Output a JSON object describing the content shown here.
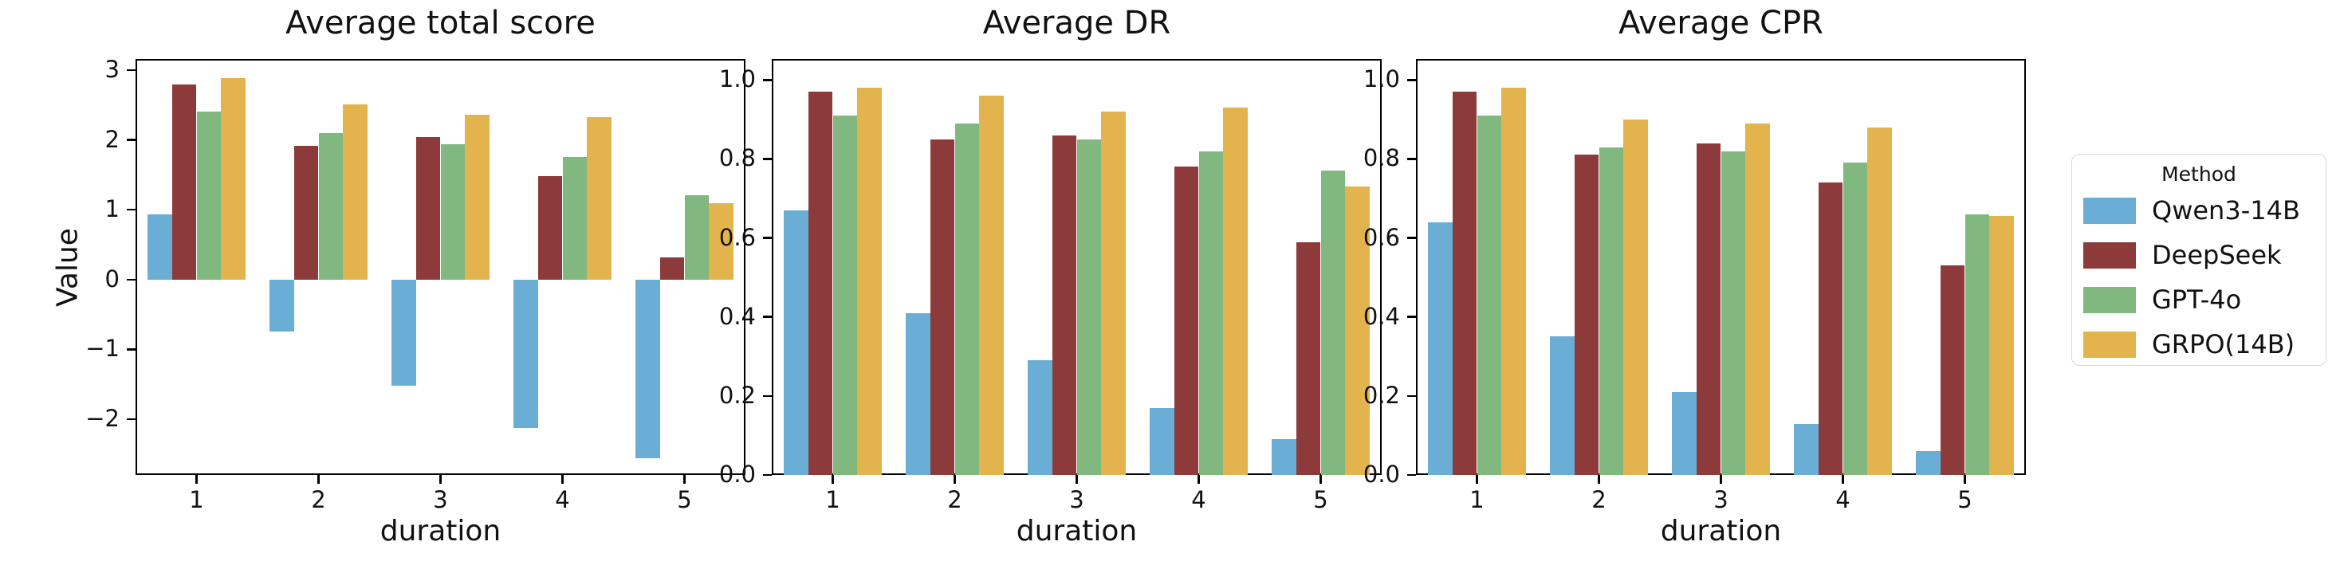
{
  "figure": {
    "background": "#ffffff"
  },
  "legend": {
    "title": "Method",
    "items": [
      {
        "label": "Qwen3-14B",
        "color": "#6aaed6"
      },
      {
        "label": "DeepSeek",
        "color": "#8c3a3a"
      },
      {
        "label": "GPT-4o",
        "color": "#80b880"
      },
      {
        "label": "GRPO(14B)",
        "color": "#e3b44d"
      }
    ]
  },
  "chart_data": [
    {
      "type": "bar",
      "title": "Average total score",
      "xlabel": "duration",
      "ylabel": "Value",
      "categories": [
        "1",
        "2",
        "3",
        "4",
        "5"
      ],
      "series": [
        {
          "name": "Qwen3-14B",
          "color": "#6aaed6",
          "values": [
            0.93,
            -0.74,
            -1.52,
            -2.13,
            -2.56
          ]
        },
        {
          "name": "DeepSeek",
          "color": "#8c3a3a",
          "values": [
            2.8,
            1.92,
            2.04,
            1.48,
            0.32
          ]
        },
        {
          "name": "GPT-4o",
          "color": "#80b880",
          "values": [
            2.41,
            2.1,
            1.94,
            1.76,
            1.21
          ]
        },
        {
          "name": "GRPO(14B)",
          "color": "#e3b44d",
          "values": [
            2.89,
            2.51,
            2.36,
            2.33,
            1.09
          ]
        }
      ],
      "ylim": [
        -2.8,
        3.16
      ],
      "yticks": [
        3,
        2,
        1,
        0,
        -1,
        -2
      ],
      "ytick_decimals": 0,
      "grid": false,
      "legend_position": "outside-right"
    },
    {
      "type": "bar",
      "title": "Average DR",
      "xlabel": "duration",
      "ylabel": "",
      "categories": [
        "1",
        "2",
        "3",
        "4",
        "5"
      ],
      "series": [
        {
          "name": "Qwen3-14B",
          "color": "#6aaed6",
          "values": [
            0.67,
            0.41,
            0.29,
            0.17,
            0.09
          ]
        },
        {
          "name": "DeepSeek",
          "color": "#8c3a3a",
          "values": [
            0.97,
            0.85,
            0.86,
            0.78,
            0.59
          ]
        },
        {
          "name": "GPT-4o",
          "color": "#80b880",
          "values": [
            0.91,
            0.89,
            0.85,
            0.82,
            0.77
          ]
        },
        {
          "name": "GRPO(14B)",
          "color": "#e3b44d",
          "values": [
            0.98,
            0.96,
            0.92,
            0.93,
            0.73
          ]
        }
      ],
      "ylim": [
        0,
        1.053
      ],
      "yticks": [
        1.0,
        0.8,
        0.6,
        0.4,
        0.2,
        0.0
      ],
      "ytick_decimals": 1,
      "grid": false,
      "legend_position": "outside-right"
    },
    {
      "type": "bar",
      "title": "Average CPR",
      "xlabel": "duration",
      "ylabel": "",
      "categories": [
        "1",
        "2",
        "3",
        "4",
        "5"
      ],
      "series": [
        {
          "name": "Qwen3-14B",
          "color": "#6aaed6",
          "values": [
            0.64,
            0.35,
            0.21,
            0.13,
            0.06
          ]
        },
        {
          "name": "DeepSeek",
          "color": "#8c3a3a",
          "values": [
            0.97,
            0.81,
            0.84,
            0.74,
            0.53
          ]
        },
        {
          "name": "GPT-4o",
          "color": "#80b880",
          "values": [
            0.91,
            0.83,
            0.82,
            0.79,
            0.66
          ]
        },
        {
          "name": "GRPO(14B)",
          "color": "#e3b44d",
          "values": [
            0.98,
            0.9,
            0.89,
            0.88,
            0.655
          ]
        }
      ],
      "ylim": [
        0,
        1.053
      ],
      "yticks": [
        1.0,
        0.8,
        0.6,
        0.4,
        0.2,
        0.0
      ],
      "ytick_decimals": 1,
      "grid": false,
      "legend_position": "outside-right"
    }
  ]
}
